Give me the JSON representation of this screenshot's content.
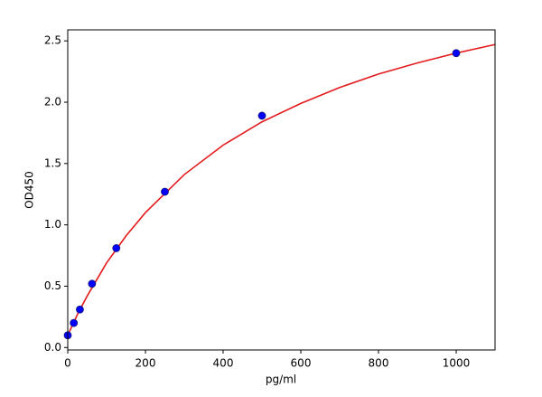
{
  "chart_data": {
    "type": "scatter",
    "x_label": "pg/ml",
    "y_label": "OD450",
    "xlim": [
      0,
      1100
    ],
    "xticks": [
      0,
      200,
      400,
      600,
      800,
      1000
    ],
    "ylim": [
      -0.02,
      2.59
    ],
    "yticks": [
      {
        "value": 0,
        "label": "0.0"
      },
      0.5,
      {
        "value": 1,
        "label": "1.0"
      },
      1.5,
      {
        "value": 2,
        "label": "2.0"
      },
      2.5
    ],
    "series": [
      {
        "type": "scatter",
        "color": "#0000ff",
        "x": [
          0,
          15.6,
          31.25,
          62.5,
          125,
          250,
          500,
          1000
        ],
        "values": [
          0.1,
          0.2,
          0.31,
          0.52,
          0.81,
          1.27,
          1.89,
          2.4
        ]
      },
      {
        "type": "line",
        "color": "#e41a1c",
        "x": [
          0,
          25,
          50,
          100,
          150,
          200,
          300,
          400,
          500,
          600,
          700,
          800,
          900,
          1000,
          1100
        ],
        "values": [
          0.1,
          0.27,
          0.42,
          0.69,
          0.91,
          1.1,
          1.41,
          1.65,
          1.84,
          1.99,
          2.12,
          2.23,
          2.32,
          2.4,
          2.47
        ]
      }
    ]
  }
}
